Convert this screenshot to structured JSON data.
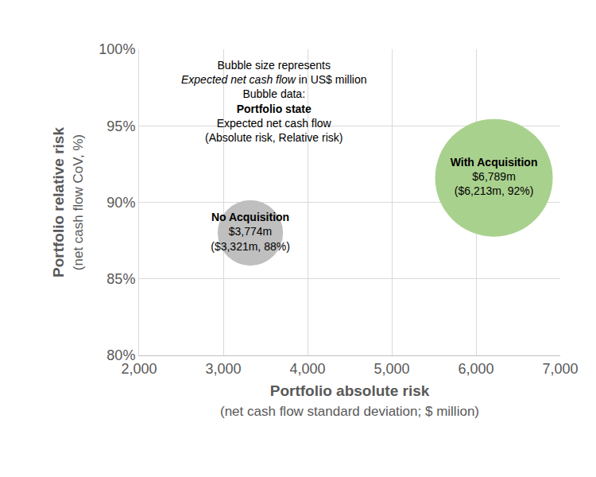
{
  "chart_data": {
    "type": "bubble",
    "x_label": [
      "Portfolio absolute risk",
      "(net cash flow standard deviation; $ million)"
    ],
    "y_label": [
      "Portfolio relative risk",
      "(net cash flow CoV, %)"
    ],
    "note": [
      [
        "Bubble size represents"
      ],
      [
        "Expected net cash flow",
        " in US$ million"
      ],
      [
        "Bubble data:"
      ],
      [
        "Portfolio state"
      ],
      [
        "Expected net cash flow"
      ],
      [
        "(Absolute risk, Relative risk)"
      ]
    ],
    "xlim": [
      2000,
      7000
    ],
    "xticks": [
      {
        "value": 2000,
        "label": "2,000"
      },
      {
        "value": 3000,
        "label": "3,000"
      },
      {
        "value": 4000,
        "label": "4,000"
      },
      {
        "value": 5000,
        "label": "5,000"
      },
      {
        "value": 6000,
        "label": "6,000"
      },
      {
        "value": 7000,
        "label": "7,000"
      }
    ],
    "ylim": [
      80,
      100
    ],
    "yticks": [
      {
        "value": 80,
        "label": "80%"
      },
      {
        "value": 85,
        "label": "85%"
      },
      {
        "value": 90,
        "label": "90%"
      },
      {
        "value": 95,
        "label": "95%"
      },
      {
        "value": 100,
        "label": "100%"
      }
    ],
    "grid": true,
    "data_labels": true,
    "series": [
      {
        "name": "No Acquisition",
        "color": "#bfbfbf",
        "x": [
          3321
        ],
        "values": [
          88
        ],
        "size": [
          3774
        ],
        "size_labels": [
          "$3,774m"
        ],
        "point_labels": [
          "($3,321m, 88%)"
        ]
      },
      {
        "name": "With Acquisition",
        "color": "#a9d18e",
        "x": [
          6213
        ],
        "values": [
          91.6
        ],
        "size": [
          6789
        ],
        "size_labels": [
          "$6,789m"
        ],
        "point_labels": [
          "($6,213m, 92%)"
        ]
      }
    ]
  }
}
